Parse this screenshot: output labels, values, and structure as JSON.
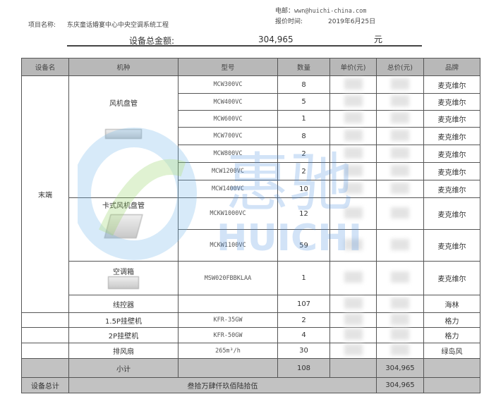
{
  "header": {
    "email_label": "电邮：",
    "email": "wwn@huichi-china.com",
    "project_label": "项目名称:",
    "project_name": "东庆童话婚宴中心中央空调系统工程",
    "date_label": "报价时间:",
    "date": "2019年6月25日",
    "total_label": "设备总金额:",
    "total_value": "304,965",
    "currency": "元"
  },
  "watermark": {
    "text": "HUICHI",
    "logo": "huichi-logo"
  },
  "columns": [
    "设备名",
    "机种",
    "型号",
    "数量",
    "单价(元)",
    "总价(元)",
    "品牌"
  ],
  "group_label": "末端",
  "sections": {
    "fcu": "风机盘管",
    "cassette": "卡式风机盘管",
    "ahu": "空调箱"
  },
  "rows": [
    {
      "model": "MCW300VC",
      "qty": "8",
      "brand": "麦克维尔"
    },
    {
      "model": "MCW400VC",
      "qty": "5",
      "brand": "麦克维尔"
    },
    {
      "model": "MCW600VC",
      "qty": "1",
      "brand": "麦克维尔"
    },
    {
      "model": "MCW700VC",
      "qty": "8",
      "brand": "麦克维尔"
    },
    {
      "model": "MCW800VC",
      "qty": "2",
      "brand": "麦克维尔"
    },
    {
      "model": "MCW1200VC",
      "qty": "2",
      "brand": "麦克维尔"
    },
    {
      "model": "MCW1400VC",
      "qty": "10",
      "brand": "麦克维尔"
    },
    {
      "model": "MCKW1000VC",
      "qty": "12",
      "brand": "麦克维尔"
    },
    {
      "model": "MCKW1100VC",
      "qty": "59",
      "brand": "麦克维尔"
    },
    {
      "model": "MSW020FBBKLAA",
      "qty": "1",
      "brand": "麦克维尔"
    },
    {
      "type": "线控器",
      "model": "",
      "qty": "107",
      "brand": "海林"
    },
    {
      "type": "1.5P挂壁机",
      "model": "KFR-35GW",
      "qty": "2",
      "brand": "格力"
    },
    {
      "type": "2P挂壁机",
      "model": "KFR-50GW",
      "qty": "4",
      "brand": "格力"
    },
    {
      "type": "排风扇",
      "model": "265m³/h",
      "qty": "30",
      "brand": "绿岛风"
    }
  ],
  "subtotal": {
    "label": "小计",
    "qty": "108",
    "total": "304,965"
  },
  "grand_total": {
    "label": "设备总计",
    "words": "叁拾万肆仟玖佰陆拾伍",
    "total": "304,965"
  }
}
